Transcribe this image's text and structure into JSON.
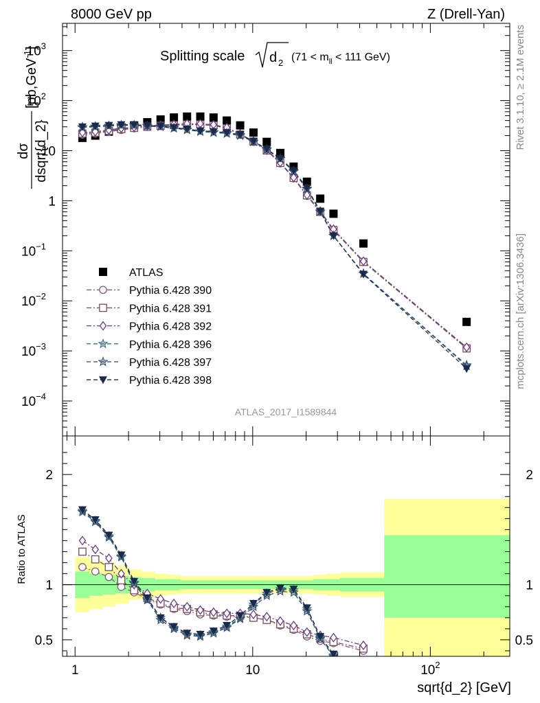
{
  "header": {
    "left": "8000 GeV pp",
    "right": "Z (Drell-Yan)"
  },
  "side_labels": {
    "rivet": "Rivet 3.1.10, ≥ 2.1M events",
    "mcplots": "mcplots.cern.ch [arXiv:1306.3436]"
  },
  "watermark": "ATLAS_2017_I1589844",
  "colors": {
    "band_inner": "#99ff99",
    "band_outer": "#ffff99"
  },
  "chart_data": [
    {
      "type": "scatter",
      "panel": "main",
      "title_main": "Splitting scale",
      "title_sqrt": "d",
      "title_sub": "2",
      "title_range": "(71 < m",
      "title_range_sub": "ll",
      "title_range_end": " < 111 GeV)",
      "ylabel_top": "dσ",
      "ylabel_bottom": "dsqrt{d_2}",
      "ylabel_units": "[pb,GeV",
      "ylabel_units_sup": "-1",
      "ylabel_units_end": "]",
      "xscale": "log",
      "yscale": "log",
      "xlim": [
        0.85,
        280
      ],
      "ylim": [
        2e-05,
        3500
      ],
      "yticks": [
        {
          "v": 0.0001,
          "base": "10",
          "exp": "−4"
        },
        {
          "v": 0.001,
          "base": "10",
          "exp": "−3"
        },
        {
          "v": 0.01,
          "base": "10",
          "exp": "−2"
        },
        {
          "v": 0.1,
          "base": "10",
          "exp": "−1"
        },
        {
          "v": 1,
          "base": "1",
          "exp": ""
        },
        {
          "v": 10,
          "base": "10",
          "exp": ""
        },
        {
          "v": 100,
          "base": "10",
          "exp": "2"
        },
        {
          "v": 1000,
          "base": "10",
          "exp": "3"
        }
      ],
      "legend_position": "left-middle",
      "x": [
        1.1,
        1.3,
        1.55,
        1.82,
        2.15,
        2.55,
        3.03,
        3.6,
        4.27,
        5.07,
        6.02,
        7.15,
        8.5,
        10.1,
        12.0,
        14.3,
        17.0,
        20.2,
        24.0,
        28.5,
        42.0,
        160.0
      ],
      "series": [
        {
          "name": "ATLAS",
          "marker": "square-filled",
          "color": "#000000",
          "line": "none",
          "values": [
            18,
            20,
            24,
            28,
            32,
            37,
            42,
            46,
            48,
            48,
            46,
            40,
            32,
            23,
            15,
            9.0,
            4.8,
            2.4,
            1.1,
            0.55,
            0.14,
            0.0038
          ]
        },
        {
          "name": "Pythia 6.428 390",
          "marker": "circle-open",
          "color": "#8a5a83",
          "line": "dash-dot",
          "values": [
            21,
            22,
            24,
            26,
            28,
            30,
            31,
            32,
            33,
            33,
            32,
            28,
            21,
            15,
            10,
            5.6,
            2.8,
            1.25,
            0.6,
            0.26,
            0.06,
            0.00115
          ]
        },
        {
          "name": "Pythia 6.428 391",
          "marker": "square-open",
          "color": "#7a4a5a",
          "line": "dash-dot",
          "values": [
            22,
            23,
            25,
            27,
            28.5,
            30,
            31.5,
            32.5,
            33.5,
            33.5,
            32,
            28,
            21,
            15.2,
            10.1,
            5.7,
            2.85,
            1.28,
            0.6,
            0.26,
            0.06,
            0.00112
          ]
        },
        {
          "name": "Pythia 6.428 392",
          "marker": "diamond-open",
          "color": "#6a3d8a",
          "line": "dash-dot",
          "values": [
            23,
            24,
            26,
            28,
            29.5,
            31,
            32.5,
            33.5,
            34.5,
            34.5,
            33,
            29,
            21.5,
            15.5,
            10.3,
            5.8,
            2.9,
            1.3,
            0.62,
            0.27,
            0.062,
            0.00118
          ]
        },
        {
          "name": "Pythia 6.428 396",
          "marker": "star-open",
          "color": "#3f6d7a",
          "line": "dash",
          "values": [
            29,
            30,
            31,
            32,
            32,
            31,
            30,
            28,
            26,
            24,
            23,
            22,
            20,
            15,
            10.5,
            6.8,
            3.8,
            1.7,
            0.6,
            0.2,
            0.035,
            0.00052
          ]
        },
        {
          "name": "Pythia 6.428 397",
          "marker": "star-open",
          "color": "#2e4a6d",
          "line": "dash",
          "values": [
            29.5,
            30.5,
            31.5,
            32.5,
            32.5,
            31.5,
            30.5,
            28.5,
            26.5,
            24.5,
            23.5,
            22.5,
            20.5,
            15.2,
            10.6,
            6.9,
            3.9,
            1.75,
            0.61,
            0.2,
            0.035,
            0.0005
          ]
        },
        {
          "name": "Pythia 6.428 398",
          "marker": "triangle-down-filled",
          "color": "#1b2a4a",
          "line": "dash",
          "values": [
            30,
            31,
            32,
            33,
            33,
            32,
            31,
            29,
            27,
            25,
            24,
            23,
            21,
            15.5,
            10.8,
            7.0,
            4.0,
            1.8,
            0.62,
            0.2,
            0.034,
            0.00044
          ]
        }
      ]
    },
    {
      "type": "line",
      "panel": "ratio",
      "ylabel": "Ratio to ATLAS",
      "xlabel": "sqrt{d_2} [GeV]",
      "xscale": "log",
      "xlim": [
        0.85,
        280
      ],
      "ylim": [
        0.35,
        2.35
      ],
      "yticks": [
        0.5,
        1,
        2
      ],
      "yticklabels": [
        "0.5",
        "1",
        "2"
      ],
      "xticks": [
        1,
        10,
        100
      ],
      "xticklabels": [
        {
          "base": "1",
          "exp": ""
        },
        {
          "base": "10",
          "exp": ""
        },
        {
          "base": "10",
          "exp": "2"
        }
      ],
      "reference_line": 1,
      "band_edges": [
        1.0,
        1.2,
        1.42,
        1.68,
        2.0,
        2.35,
        2.8,
        3.3,
        3.9,
        4.6,
        5.5,
        6.5,
        7.7,
        9.2,
        10.9,
        13.0,
        15.4,
        18.4,
        21.9,
        26.0,
        31.0,
        55.0,
        280.0
      ],
      "band_inner_lo": [
        0.88,
        0.9,
        0.91,
        0.92,
        0.93,
        0.94,
        0.95,
        0.95,
        0.96,
        0.96,
        0.96,
        0.96,
        0.96,
        0.96,
        0.96,
        0.96,
        0.96,
        0.96,
        0.95,
        0.95,
        0.94,
        0.7
      ],
      "band_inner_hi": [
        1.12,
        1.1,
        1.09,
        1.08,
        1.07,
        1.06,
        1.05,
        1.05,
        1.04,
        1.04,
        1.04,
        1.04,
        1.04,
        1.04,
        1.04,
        1.04,
        1.04,
        1.04,
        1.05,
        1.05,
        1.06,
        1.45
      ],
      "band_outer_lo": [
        0.75,
        0.78,
        0.8,
        0.83,
        0.86,
        0.88,
        0.9,
        0.91,
        0.92,
        0.92,
        0.92,
        0.92,
        0.92,
        0.92,
        0.92,
        0.92,
        0.92,
        0.92,
        0.91,
        0.9,
        0.89,
        0.35
      ],
      "band_outer_hi": [
        1.25,
        1.22,
        1.2,
        1.17,
        1.14,
        1.12,
        1.1,
        1.09,
        1.08,
        1.08,
        1.08,
        1.08,
        1.08,
        1.08,
        1.08,
        1.08,
        1.08,
        1.08,
        1.09,
        1.1,
        1.11,
        1.78
      ],
      "x": [
        1.1,
        1.3,
        1.55,
        1.82,
        2.15,
        2.55,
        3.03,
        3.6,
        4.27,
        5.07,
        6.02,
        7.15,
        8.5,
        10.1,
        12.0,
        14.3,
        17.0,
        20.2,
        24.0,
        28.5,
        42.0
      ],
      "series": [
        {
          "name": "Pythia 6.428 390",
          "marker": "circle-open",
          "color": "#8a5a83",
          "line": "dash-dot",
          "values": [
            1.16,
            1.12,
            1.07,
            0.98,
            0.93,
            0.87,
            0.82,
            0.78,
            0.76,
            0.73,
            0.72,
            0.71,
            0.71,
            0.7,
            0.68,
            0.63,
            0.59,
            0.53,
            0.49,
            0.47,
            0.4
          ]
        },
        {
          "name": "Pythia 6.428 391",
          "marker": "square-open",
          "color": "#7a4a5a",
          "line": "dash-dot",
          "values": [
            1.3,
            1.23,
            1.16,
            1.04,
            0.95,
            0.88,
            0.83,
            0.79,
            0.78,
            0.75,
            0.73,
            0.72,
            0.72,
            0.7,
            0.68,
            0.64,
            0.6,
            0.55,
            0.51,
            0.48,
            0.42
          ]
        },
        {
          "name": "Pythia 6.428 392",
          "marker": "diamond-open",
          "color": "#6a3d8a",
          "line": "dash-dot",
          "values": [
            1.4,
            1.32,
            1.24,
            1.1,
            1.0,
            0.92,
            0.87,
            0.83,
            0.8,
            0.77,
            0.75,
            0.74,
            0.74,
            0.73,
            0.71,
            0.67,
            0.63,
            0.57,
            0.54,
            0.52,
            0.45
          ]
        },
        {
          "name": "Pythia 6.428 396",
          "marker": "star-open",
          "color": "#3f6d7a",
          "line": "dash",
          "values": [
            1.67,
            1.58,
            1.44,
            1.26,
            1.02,
            0.87,
            0.7,
            0.61,
            0.55,
            0.54,
            0.57,
            0.62,
            0.7,
            0.82,
            0.92,
            0.96,
            0.95,
            0.78,
            0.52,
            0.36,
            0.15
          ]
        },
        {
          "name": "Pythia 6.428 397",
          "marker": "star-open",
          "color": "#2e4a6d",
          "line": "dash",
          "values": [
            1.66,
            1.57,
            1.43,
            1.25,
            1.01,
            0.86,
            0.68,
            0.6,
            0.54,
            0.53,
            0.56,
            0.61,
            0.69,
            0.8,
            0.9,
            0.94,
            0.93,
            0.76,
            0.51,
            0.35,
            0.15
          ]
        },
        {
          "name": "Pythia 6.428 398",
          "marker": "triangle-down-filled",
          "color": "#1b2a4a",
          "line": "dash",
          "values": [
            1.68,
            1.59,
            1.45,
            1.27,
            1.03,
            0.88,
            0.7,
            0.62,
            0.56,
            0.55,
            0.58,
            0.63,
            0.72,
            0.83,
            0.93,
            0.97,
            0.96,
            0.79,
            0.53,
            0.37,
            0.16
          ]
        }
      ]
    }
  ]
}
